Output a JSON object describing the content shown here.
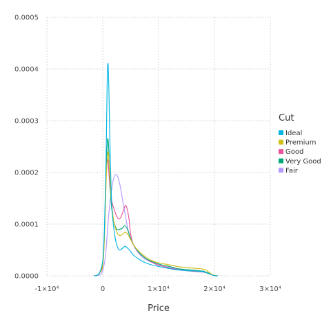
{
  "chart_data": {
    "type": "line",
    "title": "",
    "xlabel": "Price",
    "ylabel": "",
    "xlim": [
      -10000,
      30000
    ],
    "ylim": [
      0,
      0.0005
    ],
    "x_ticks": [
      -10000,
      0,
      10000,
      20000,
      30000
    ],
    "x_tick_labels": [
      "-1×10⁴",
      "0",
      "1×10⁴",
      "2×10⁴",
      "3×10⁴"
    ],
    "y_ticks": [
      0,
      0.0001,
      0.0002,
      0.0003,
      0.0004,
      0.0005
    ],
    "y_tick_labels": [
      "0.0000",
      "0.0001",
      "0.0002",
      "0.0003",
      "0.0004",
      "0.0005"
    ],
    "grid": true,
    "legend": {
      "title": "Cut",
      "placement": "right"
    },
    "series": [
      {
        "name": "Ideal",
        "color": "#00b5e5",
        "points": [
          [
            -1500,
            0
          ],
          [
            -1000,
            1e-06
          ],
          [
            -500,
            8e-06
          ],
          [
            0,
            3e-05
          ],
          [
            300,
            9e-05
          ],
          [
            600,
            0.00023
          ],
          [
            800,
            0.00038
          ],
          [
            950,
            0.00041
          ],
          [
            1100,
            0.00036
          ],
          [
            1300,
            0.00025
          ],
          [
            1600,
            0.00014
          ],
          [
            2000,
            9e-05
          ],
          [
            2500,
            6e-05
          ],
          [
            3000,
            5e-05
          ],
          [
            3500,
            5.3e-05
          ],
          [
            4000,
            5.7e-05
          ],
          [
            4500,
            5.3e-05
          ],
          [
            5000,
            4.7e-05
          ],
          [
            5500,
            4e-05
          ],
          [
            6500,
            3.2e-05
          ],
          [
            7500,
            2.6e-05
          ],
          [
            8500,
            2.2e-05
          ],
          [
            10000,
            1.8e-05
          ],
          [
            11000,
            1.6e-05
          ],
          [
            12000,
            1.4e-05
          ],
          [
            13000,
            1.2e-05
          ],
          [
            14000,
            1.1e-05
          ],
          [
            15000,
            1e-05
          ],
          [
            16000,
            9.5e-06
          ],
          [
            17000,
            9e-06
          ],
          [
            18000,
            8e-06
          ],
          [
            18500,
            6e-06
          ],
          [
            19000,
            4e-06
          ],
          [
            19500,
            2e-06
          ],
          [
            20000,
            5e-07
          ],
          [
            20500,
            0
          ]
        ]
      },
      {
        "name": "Premium",
        "color": "#d1bf1d",
        "points": [
          [
            -1500,
            0
          ],
          [
            -1000,
            1e-06
          ],
          [
            -500,
            6e-06
          ],
          [
            0,
            2e-05
          ],
          [
            300,
            7e-05
          ],
          [
            600,
            0.00018
          ],
          [
            900,
            0.000238
          ],
          [
            1100,
            0.000225
          ],
          [
            1300,
            0.00019
          ],
          [
            1600,
            0.00014
          ],
          [
            2000,
            0.000105
          ],
          [
            2500,
            8.5e-05
          ],
          [
            3000,
            7.8e-05
          ],
          [
            3500,
            8e-05
          ],
          [
            4000,
            8.4e-05
          ],
          [
            4500,
            8e-05
          ],
          [
            5000,
            7e-05
          ],
          [
            5500,
            6e-05
          ],
          [
            6500,
            4.7e-05
          ],
          [
            7500,
            3.8e-05
          ],
          [
            8500,
            3.1e-05
          ],
          [
            10000,
            2.5e-05
          ],
          [
            11000,
            2.3e-05
          ],
          [
            12000,
            2.1e-05
          ],
          [
            13000,
            1.9e-05
          ],
          [
            14000,
            1.7e-05
          ],
          [
            15000,
            1.6e-05
          ],
          [
            16000,
            1.5e-05
          ],
          [
            17000,
            1.4e-05
          ],
          [
            18000,
            1.3e-05
          ],
          [
            18500,
            1.1e-05
          ],
          [
            19000,
            7e-06
          ],
          [
            19500,
            3e-06
          ],
          [
            20000,
            1e-06
          ],
          [
            20500,
            0
          ]
        ]
      },
      {
        "name": "Good",
        "color": "#e8529b",
        "points": [
          [
            -1500,
            0
          ],
          [
            -1000,
            1e-06
          ],
          [
            -500,
            6e-06
          ],
          [
            0,
            2e-05
          ],
          [
            300,
            8e-05
          ],
          [
            600,
            0.00019
          ],
          [
            900,
            0.000225
          ],
          [
            1100,
            0.0002
          ],
          [
            1300,
            0.00017
          ],
          [
            1600,
            0.000145
          ],
          [
            2000,
            0.00013
          ],
          [
            2500,
            0.000115
          ],
          [
            3000,
            0.00011
          ],
          [
            3500,
            0.00012
          ],
          [
            4000,
            0.000135
          ],
          [
            4300,
            0.000132
          ],
          [
            4700,
            0.00011
          ],
          [
            5000,
            8e-05
          ],
          [
            5500,
            6e-05
          ],
          [
            6500,
            4.5e-05
          ],
          [
            7500,
            3.5e-05
          ],
          [
            8500,
            2.8e-05
          ],
          [
            10000,
            2.1e-05
          ],
          [
            11000,
            1.8e-05
          ],
          [
            12000,
            1.5e-05
          ],
          [
            13000,
            1.3e-05
          ],
          [
            14000,
            1.1e-05
          ],
          [
            15000,
            1e-05
          ],
          [
            16000,
            9e-06
          ],
          [
            17000,
            8.5e-06
          ],
          [
            18000,
            8e-06
          ],
          [
            18500,
            6e-06
          ],
          [
            19000,
            4e-06
          ],
          [
            19500,
            2e-06
          ],
          [
            20000,
            5e-07
          ],
          [
            20500,
            0
          ]
        ]
      },
      {
        "name": "Very Good",
        "color": "#00a878",
        "points": [
          [
            -1500,
            0
          ],
          [
            -1000,
            1e-06
          ],
          [
            -500,
            7e-06
          ],
          [
            0,
            2.5e-05
          ],
          [
            300,
            8e-05
          ],
          [
            600,
            0.0002
          ],
          [
            850,
            0.000262
          ],
          [
            1050,
            0.00025
          ],
          [
            1300,
            0.00018
          ],
          [
            1600,
            0.00013
          ],
          [
            2000,
            0.000105
          ],
          [
            2500,
            9e-05
          ],
          [
            3000,
            9e-05
          ],
          [
            3500,
            9.2e-05
          ],
          [
            4000,
            9.7e-05
          ],
          [
            4500,
            8.8e-05
          ],
          [
            5000,
            7.2e-05
          ],
          [
            5500,
            6e-05
          ],
          [
            6500,
            4.5e-05
          ],
          [
            7500,
            3.5e-05
          ],
          [
            8500,
            2.9e-05
          ],
          [
            10000,
            2.3e-05
          ],
          [
            11000,
            2e-05
          ],
          [
            12000,
            1.8e-05
          ],
          [
            13000,
            1.5e-05
          ],
          [
            14000,
            1.3e-05
          ],
          [
            15000,
            1.2e-05
          ],
          [
            16000,
            1.1e-05
          ],
          [
            17000,
            1e-05
          ],
          [
            18000,
            9e-06
          ],
          [
            18500,
            7e-06
          ],
          [
            19000,
            5e-06
          ],
          [
            19500,
            2e-06
          ],
          [
            20000,
            5e-07
          ],
          [
            20500,
            0
          ]
        ]
      },
      {
        "name": "Fair",
        "color": "#b69aff",
        "points": [
          [
            -1500,
            0
          ],
          [
            -500,
            2e-06
          ],
          [
            0,
            1e-05
          ],
          [
            500,
            4e-05
          ],
          [
            1000,
            0.00011
          ],
          [
            1500,
            0.00016
          ],
          [
            2000,
            0.00019
          ],
          [
            2500,
            0.000195
          ],
          [
            3000,
            0.00018
          ],
          [
            3500,
            0.00015
          ],
          [
            4000,
            0.00012
          ],
          [
            4500,
            9e-05
          ],
          [
            5000,
            7.2e-05
          ],
          [
            6000,
            5e-05
          ],
          [
            7000,
            3.7e-05
          ],
          [
            8000,
            3e-05
          ],
          [
            9000,
            2.5e-05
          ],
          [
            10000,
            2e-05
          ],
          [
            11000,
            1.8e-05
          ],
          [
            12000,
            1.6e-05
          ],
          [
            13000,
            1.4e-05
          ],
          [
            14000,
            1.2e-05
          ],
          [
            15000,
            1e-05
          ],
          [
            16000,
            9e-06
          ],
          [
            17000,
            8e-06
          ],
          [
            18000,
            7e-06
          ],
          [
            18500,
            6e-06
          ],
          [
            19000,
            4e-06
          ],
          [
            19500,
            2e-06
          ],
          [
            20000,
            1e-06
          ],
          [
            20500,
            0
          ]
        ]
      }
    ]
  }
}
